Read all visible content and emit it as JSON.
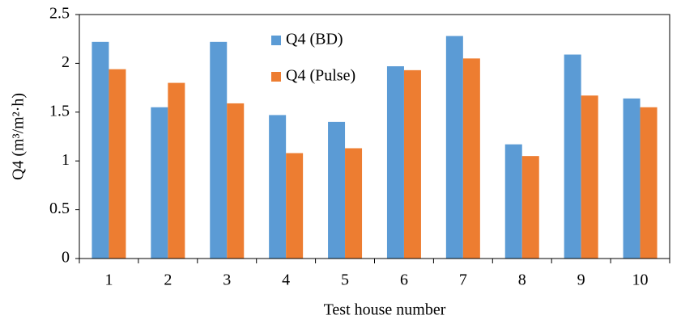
{
  "chart_data": {
    "type": "bar",
    "x_label": "Test house number",
    "y_label": "Q4 (m³/m²·h)",
    "categories": [
      "1",
      "2",
      "3",
      "4",
      "5",
      "6",
      "7",
      "8",
      "9",
      "10"
    ],
    "series": [
      {
        "name": "Q4 (BD)",
        "color": "#5b9bd5",
        "values": [
          2.22,
          1.55,
          2.22,
          1.47,
          1.4,
          1.97,
          2.28,
          1.17,
          2.09,
          1.64
        ]
      },
      {
        "name": "Q4 (Pulse)",
        "color": "#ed7d31",
        "values": [
          1.94,
          1.8,
          1.59,
          1.08,
          1.13,
          1.93,
          2.05,
          1.05,
          1.67,
          1.55
        ]
      }
    ],
    "ylim": [
      0,
      2.5
    ],
    "yticks": [
      0,
      0.5,
      1,
      1.5,
      2,
      2.5
    ],
    "grid": false,
    "legend": "top"
  }
}
